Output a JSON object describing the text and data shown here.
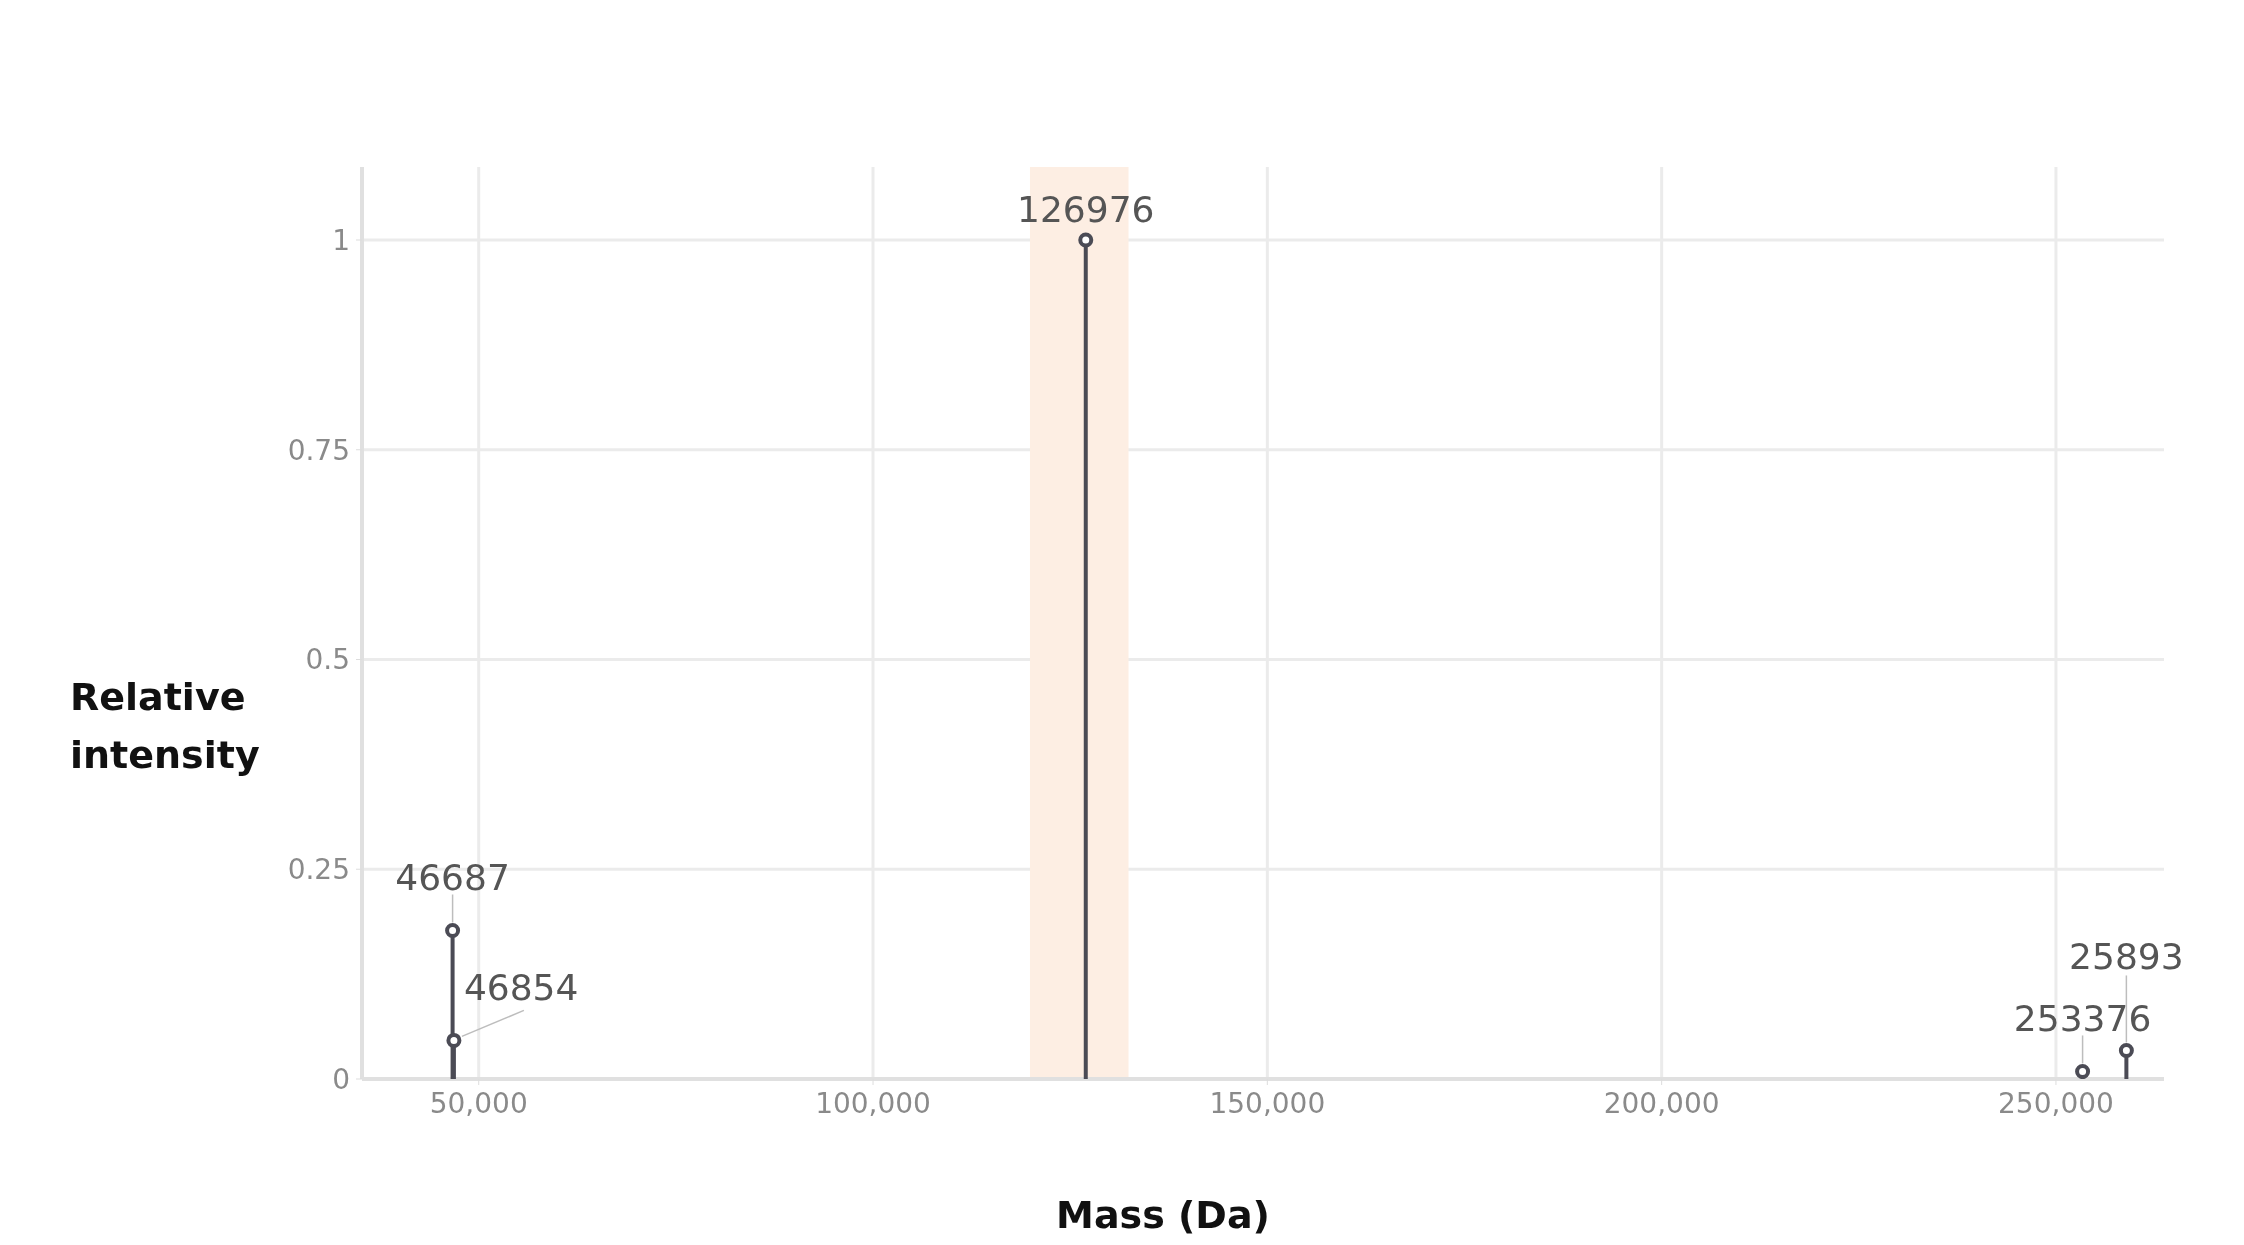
{
  "chart_data": {
    "type": "lollipop",
    "xlabel": "Mass (Da)",
    "ylabel": "Relative intensity",
    "x": [
      46687,
      46854,
      126976,
      253376,
      258930
    ],
    "series": [
      {
        "color": "#4b4b55",
        "values": [
          0.177,
          0.046,
          1,
          0.009,
          0.034
        ]
      }
    ],
    "annotations": [
      {
        "text": "46687",
        "x": 46687,
        "y": 0.177
      },
      {
        "text": "46854",
        "x": 46854,
        "y": 0.046
      },
      {
        "text": "126976",
        "x": 126976,
        "y": 1
      },
      {
        "text": "253376",
        "x": 253376,
        "y": 0.009
      },
      {
        "text": "25893",
        "x": 258930,
        "y": 0.034
      }
    ],
    "xlim": [
      35200,
      263700
    ],
    "ylim": [
      0,
      1.087
    ],
    "xticks": [
      {
        "value": 50000,
        "label": "50,000"
      },
      {
        "value": 100000,
        "label": "100,000"
      },
      {
        "value": 150000,
        "label": "150,000"
      },
      {
        "value": 200000,
        "label": "200,000"
      },
      {
        "value": 250000,
        "label": "250,000"
      }
    ],
    "yticks": [
      0,
      0.25,
      0.5,
      0.75,
      1
    ],
    "bands": [
      {
        "axis": "x",
        "from": 119900,
        "to": 132400,
        "color": "#fdeee3"
      }
    ],
    "grid": true,
    "marker": "circle"
  }
}
